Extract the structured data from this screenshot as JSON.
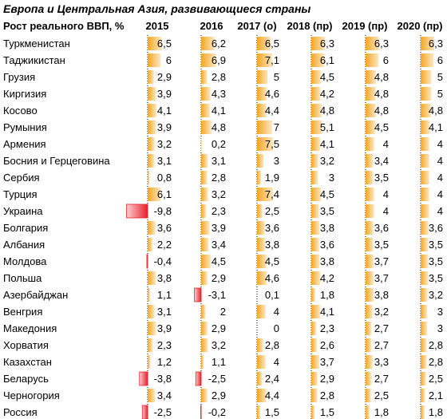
{
  "title": "Европа и Центральная Азия, развивающиеся страны",
  "chart_data": {
    "type": "table",
    "title": "Европа и Центральная Азия, развивающиеся страны",
    "row_header": "Рост реального ВВП, %",
    "columns": [
      "2015",
      "2016",
      "2017 (о)",
      "2018 (пр)",
      "2019 (пр)",
      "2020 (пр)"
    ],
    "rows": [
      {
        "country": "Туркменистан",
        "values": [
          "6,5",
          "6,2",
          "6,5",
          "6,3",
          "6,3",
          "6,3"
        ]
      },
      {
        "country": "Таджикистан",
        "values": [
          "6",
          "6,9",
          "7,1",
          "6,1",
          "6",
          "6"
        ]
      },
      {
        "country": "Грузия",
        "values": [
          "2,9",
          "2,8",
          "5",
          "4,5",
          "4,8",
          "5"
        ]
      },
      {
        "country": "Киргизия",
        "values": [
          "3,9",
          "4,3",
          "4,6",
          "4,2",
          "4,8",
          "5"
        ]
      },
      {
        "country": "Косово",
        "values": [
          "4,1",
          "4,1",
          "4,4",
          "4,8",
          "4,8",
          "4,8"
        ]
      },
      {
        "country": "Румыния",
        "values": [
          "3,9",
          "4,8",
          "7",
          "5,1",
          "4,5",
          "4,1"
        ]
      },
      {
        "country": "Армения",
        "values": [
          "3,2",
          "0,2",
          "7,5",
          "4,1",
          "4",
          "4"
        ]
      },
      {
        "country": "Босния и Герцеговина",
        "values": [
          "3,1",
          "3,1",
          "3",
          "3,2",
          "3,4",
          "4"
        ]
      },
      {
        "country": "Сербия",
        "values": [
          "0,8",
          "2,8",
          "1,9",
          "3",
          "3,5",
          "4"
        ]
      },
      {
        "country": "Турция",
        "values": [
          "6,1",
          "3,2",
          "7,4",
          "4,5",
          "4",
          "4"
        ]
      },
      {
        "country": "Украина",
        "values": [
          "-9,8",
          "2,3",
          "2,5",
          "3,5",
          "4",
          "4"
        ]
      },
      {
        "country": "Болгария",
        "values": [
          "3,6",
          "3,9",
          "3,6",
          "3,8",
          "3,6",
          "3,6"
        ]
      },
      {
        "country": "Албания",
        "values": [
          "2,2",
          "3,4",
          "3,8",
          "3,6",
          "3,5",
          "3,5"
        ]
      },
      {
        "country": "Молдова",
        "values": [
          "-0,4",
          "4,5",
          "4,5",
          "3,8",
          "3,7",
          "3,5"
        ]
      },
      {
        "country": "Польша",
        "values": [
          "3,8",
          "2,9",
          "4,6",
          "4,2",
          "3,7",
          "3,5"
        ]
      },
      {
        "country": "Азербайджан",
        "values": [
          "1,1",
          "-3,1",
          "0,1",
          "1,8",
          "3,8",
          "3,2"
        ]
      },
      {
        "country": "Венгрия",
        "values": [
          "3,1",
          "2",
          "4",
          "4,1",
          "3,2",
          "3"
        ]
      },
      {
        "country": "Македония",
        "values": [
          "3,9",
          "2,9",
          "0",
          "2,3",
          "2,7",
          "3"
        ]
      },
      {
        "country": "Хорватия",
        "values": [
          "2,3",
          "3,2",
          "2,8",
          "2,6",
          "2,7",
          "2,8"
        ]
      },
      {
        "country": "Казахстан",
        "values": [
          "1,2",
          "1,1",
          "4",
          "3,7",
          "3,3",
          "2,8"
        ]
      },
      {
        "country": "Беларусь",
        "values": [
          "-3,8",
          "-2,5",
          "2,4",
          "2,9",
          "2,7",
          "2,5"
        ]
      },
      {
        "country": "Черногория",
        "values": [
          "3,4",
          "2,9",
          "4,4",
          "2,8",
          "2,5",
          "2,1"
        ]
      },
      {
        "country": "Россия",
        "values": [
          "-2,5",
          "-0,2",
          "1,5",
          "1,5",
          "1,8",
          "1,8"
        ]
      }
    ],
    "bar_scale_max": 10,
    "positive_bar_color": "#f5a623",
    "negative_bar_color": "#e8202a"
  }
}
